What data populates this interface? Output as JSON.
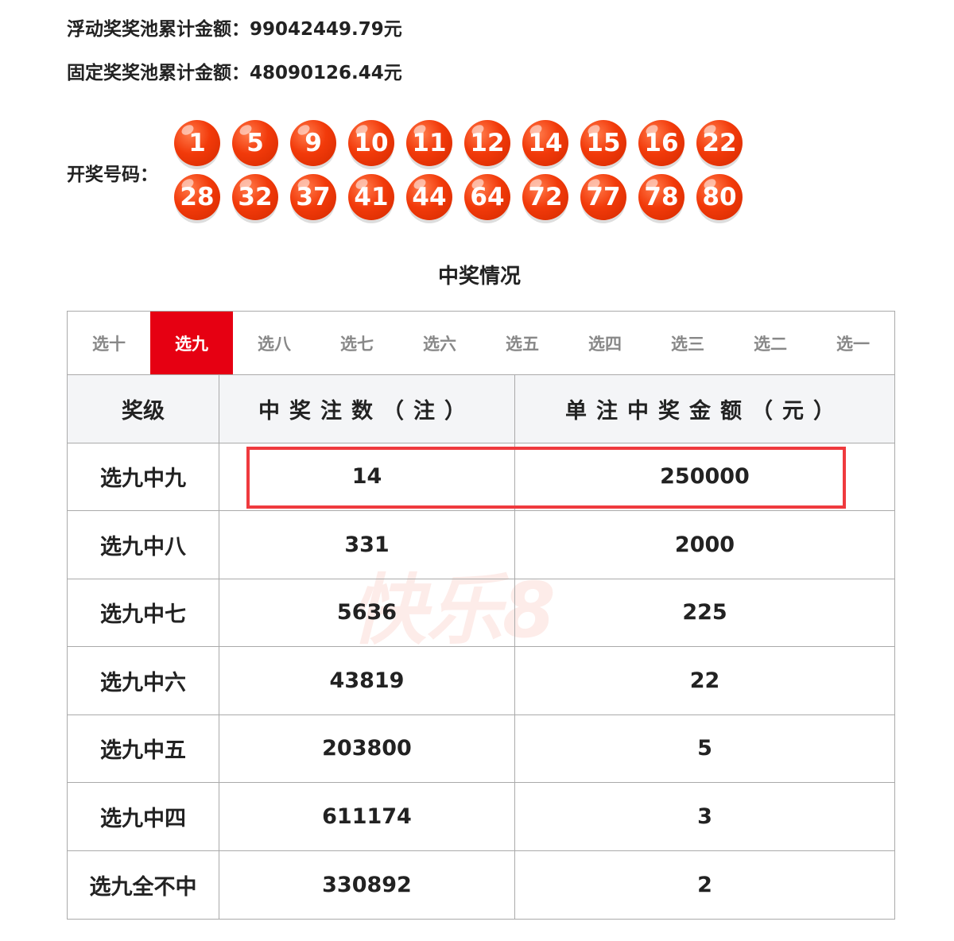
{
  "pools": {
    "floating": "浮动奖奖池累计金额：99042449.79元",
    "fixed": "固定奖奖池累计金额：48090126.44元"
  },
  "draw": {
    "label": "开奖号码：",
    "numbers": [
      "1",
      "5",
      "9",
      "10",
      "11",
      "12",
      "14",
      "15",
      "16",
      "22",
      "28",
      "32",
      "37",
      "41",
      "44",
      "64",
      "72",
      "77",
      "78",
      "80"
    ]
  },
  "section_title": "中奖情况",
  "watermark": "快乐8",
  "tabs": [
    {
      "label": "选十"
    },
    {
      "label": "选九",
      "active": true
    },
    {
      "label": "选八"
    },
    {
      "label": "选七"
    },
    {
      "label": "选六"
    },
    {
      "label": "选五"
    },
    {
      "label": "选四"
    },
    {
      "label": "选三"
    },
    {
      "label": "选二"
    },
    {
      "label": "选一"
    }
  ],
  "table": {
    "headers": [
      "奖级",
      "中奖注数（注）",
      "单注中奖金额（元）"
    ],
    "rows": [
      [
        "选九中九",
        "14",
        "250000"
      ],
      [
        "选九中八",
        "331",
        "2000"
      ],
      [
        "选九中七",
        "5636",
        "225"
      ],
      [
        "选九中六",
        "43819",
        "22"
      ],
      [
        "选九中五",
        "203800",
        "5"
      ],
      [
        "选九中四",
        "611174",
        "3"
      ],
      [
        "选九全不中",
        "330892",
        "2"
      ]
    ]
  },
  "colors": {
    "accent": "#e60012",
    "ball": "#f23a0a",
    "highlight": "#ef3a3e"
  }
}
